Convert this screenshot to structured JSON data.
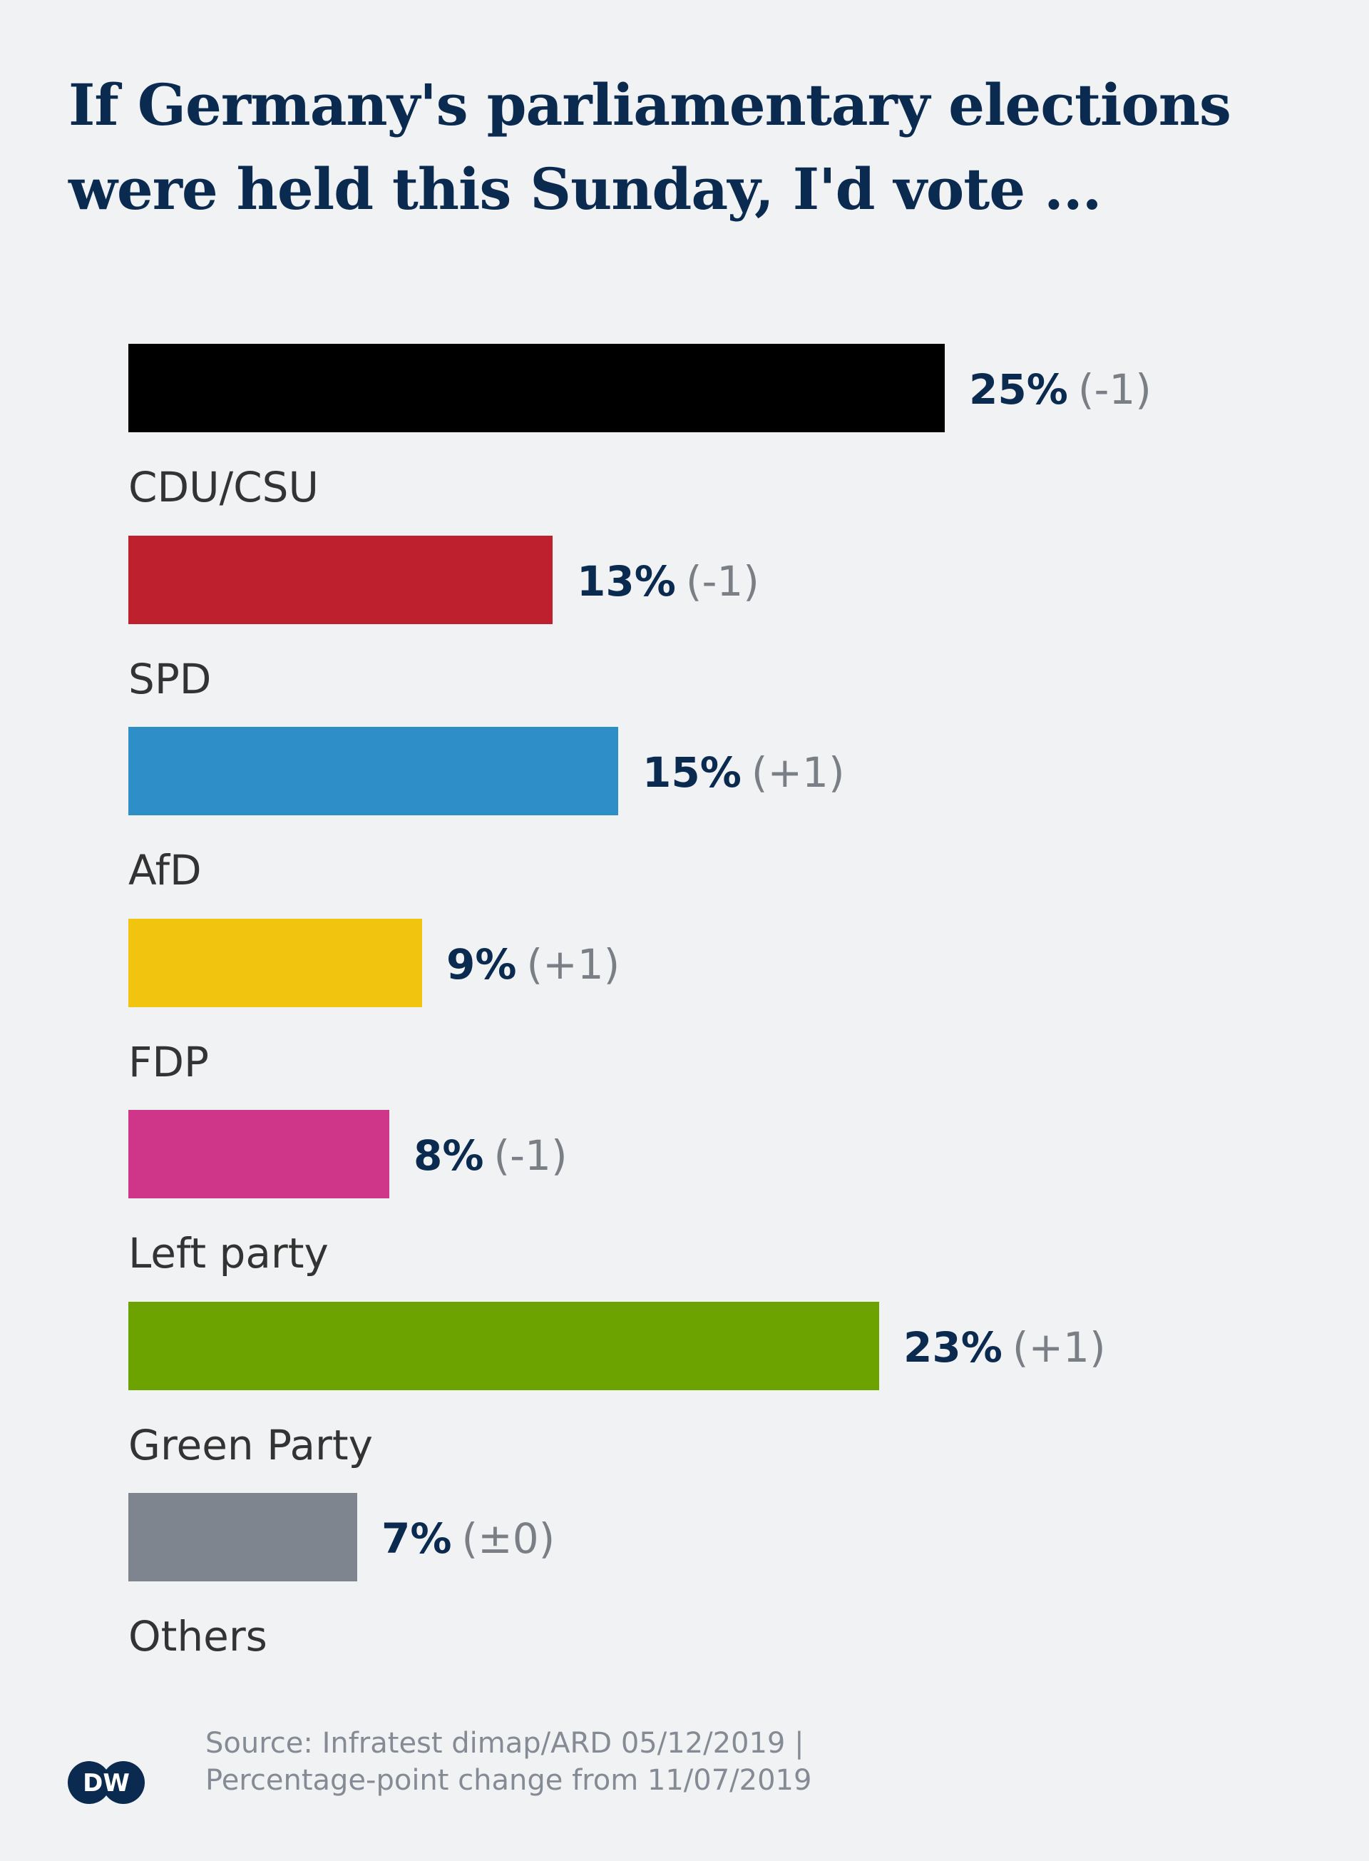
{
  "title_line1": "If Germany's parliamentary elections",
  "title_line2": "were held this Sunday, I'd vote ...",
  "chart_data": {
    "type": "bar",
    "orientation": "horizontal",
    "title": "If Germany's parliamentary elections were held this Sunday, I'd vote ...",
    "categories": [
      "CDU/CSU",
      "SPD",
      "AfD",
      "FDP",
      "Left party",
      "Green Party",
      "Others"
    ],
    "values": [
      25,
      13,
      15,
      9,
      8,
      23,
      7
    ],
    "value_labels": [
      "25%",
      "13%",
      "15%",
      "9%",
      "8%",
      "23%",
      "7%"
    ],
    "change_labels": [
      "(-1)",
      "(-1)",
      "(+1)",
      "(+1)",
      "(-1)",
      "(+1)",
      "(±0)"
    ],
    "colors": [
      "#000000",
      "#be202e",
      "#2e8fc8",
      "#f1c40f",
      "#cf3589",
      "#6da300",
      "#7e858e"
    ],
    "xlim": [
      0,
      25
    ],
    "grid": false,
    "legend": "none"
  },
  "source_line1": "Source: Infratest dimap/ARD 05/12/2019 |",
  "source_line2": "Percentage-point change from 11/07/2019",
  "logo_text": "DW",
  "colors": {
    "background": "#f1f2f4",
    "title": "#0b2a4f",
    "value_label": "#0b2a4f",
    "change_label": "#7a7f86",
    "category_label": "#333333",
    "source": "#858b94",
    "logo": "#0b2a4f"
  }
}
